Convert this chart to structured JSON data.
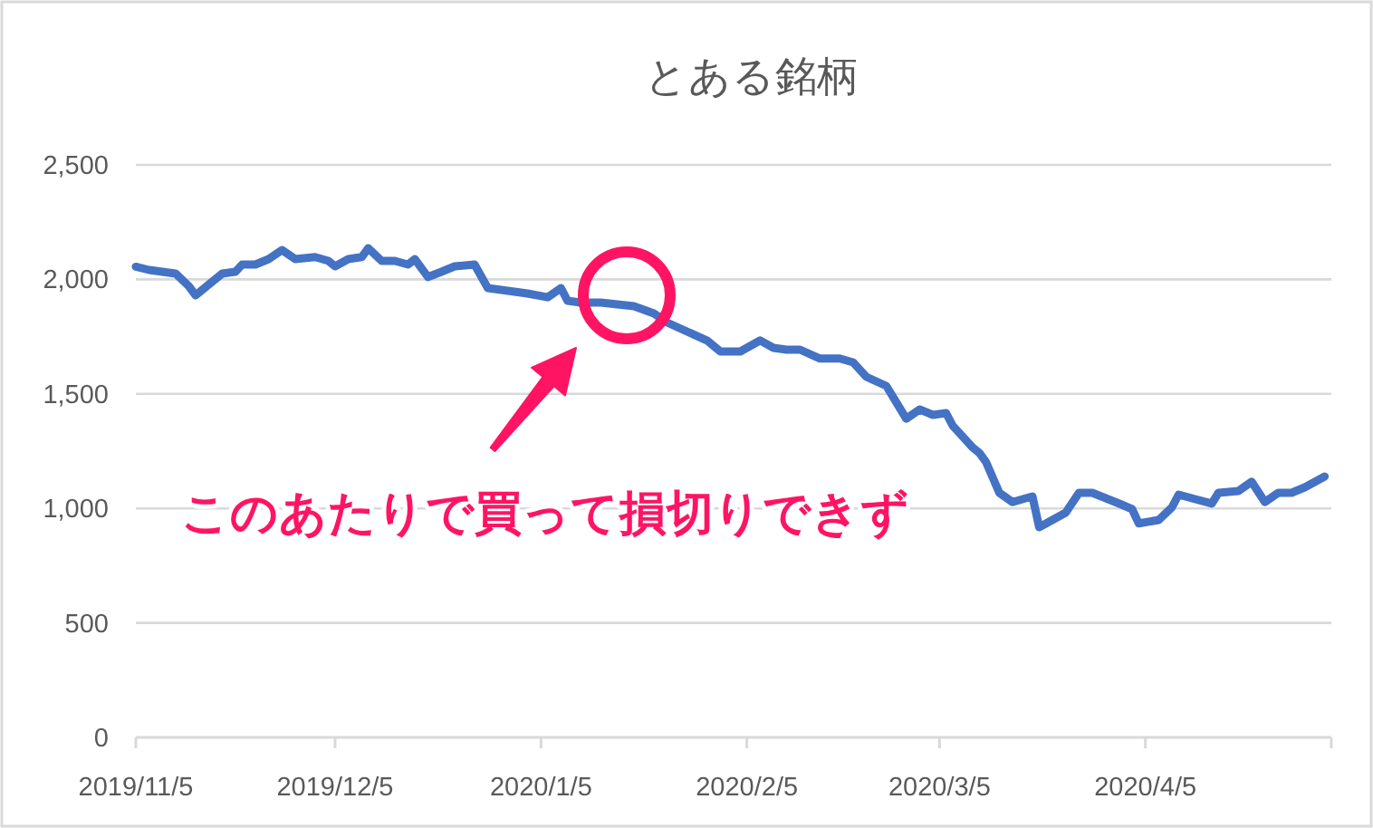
{
  "chart_data": {
    "type": "line",
    "title": "とある銘柄",
    "x": [
      "2019-11-05",
      "2019-11-07",
      "2019-11-11",
      "2019-11-13",
      "2019-11-14",
      "2019-11-16",
      "2019-11-18",
      "2019-11-20",
      "2019-11-21",
      "2019-11-23",
      "2019-11-25",
      "2019-11-27",
      "2019-11-29",
      "2019-12-02",
      "2019-12-04",
      "2019-12-05",
      "2019-12-07",
      "2019-12-09",
      "2019-12-10",
      "2019-12-12",
      "2019-12-14",
      "2019-12-16",
      "2019-12-17",
      "2019-12-19",
      "2019-12-21",
      "2019-12-23",
      "2019-12-26",
      "2019-12-28",
      "2019-12-30",
      "2020-01-03",
      "2020-01-06",
      "2020-01-08",
      "2020-01-09",
      "2020-01-11",
      "2020-01-14",
      "2020-01-19",
      "2020-01-22",
      "2020-01-24",
      "2020-01-27",
      "2020-01-30",
      "2020-02-01",
      "2020-02-04",
      "2020-02-07",
      "2020-02-09",
      "2020-02-11",
      "2020-02-13",
      "2020-02-16",
      "2020-02-19",
      "2020-02-21",
      "2020-02-23",
      "2020-02-26",
      "2020-02-29",
      "2020-03-02",
      "2020-03-04",
      "2020-03-06",
      "2020-03-07",
      "2020-03-10",
      "2020-03-11",
      "2020-03-12",
      "2020-03-14",
      "2020-03-16",
      "2020-03-18",
      "2020-03-19",
      "2020-03-20",
      "2020-03-24",
      "2020-03-26",
      "2020-03-28",
      "2020-04-01",
      "2020-04-03",
      "2020-04-04",
      "2020-04-07",
      "2020-04-09",
      "2020-04-10",
      "2020-04-12",
      "2020-04-15",
      "2020-04-16",
      "2020-04-19",
      "2020-04-21",
      "2020-04-23",
      "2020-04-25",
      "2020-04-27",
      "2020-04-29",
      "2020-05-02"
    ],
    "series": [
      {
        "color": "#4472c4",
        "values": [
          2055,
          2041,
          2025,
          1970,
          1930,
          1978,
          2025,
          2033,
          2065,
          2065,
          2089,
          2128,
          2089,
          2097,
          2081,
          2057,
          2089,
          2097,
          2136,
          2081,
          2081,
          2065,
          2089,
          2010,
          2033,
          2057,
          2065,
          1962,
          1954,
          1938,
          1922,
          1962,
          1907,
          1899,
          1899,
          1883,
          1851,
          1812,
          1772,
          1733,
          1685,
          1685,
          1733,
          1701,
          1693,
          1693,
          1654,
          1654,
          1638,
          1574,
          1535,
          1392,
          1432,
          1408,
          1416,
          1361,
          1266,
          1242,
          1203,
          1068,
          1028,
          1044,
          1052,
          918,
          981,
          1068,
          1068,
          1021,
          997,
          934,
          949,
          1005,
          1060,
          1044,
          1021,
          1068,
          1076,
          1116,
          1028,
          1068,
          1068,
          1092,
          1139
        ]
      }
    ],
    "xlim": [
      "2019-11-05",
      "2020-05-03"
    ],
    "xticks": [
      {
        "value": "2019-11-05",
        "label": "2019/11/5"
      },
      {
        "value": "2019-12-05",
        "label": "2019/12/5"
      },
      {
        "value": "2020-01-05",
        "label": "2020/1/5"
      },
      {
        "value": "2020-02-05",
        "label": "2020/2/5"
      },
      {
        "value": "2020-03-05",
        "label": "2020/3/5"
      },
      {
        "value": "2020-04-05",
        "label": "2020/4/5"
      }
    ],
    "ylim": [
      0,
      2500
    ],
    "yticks": [
      {
        "value": 0,
        "label": "0"
      },
      {
        "value": 500,
        "label": "500"
      },
      {
        "value": 1000,
        "label": "1,000"
      },
      {
        "value": 1500,
        "label": "1,500"
      },
      {
        "value": 2000,
        "label": "2,000"
      },
      {
        "value": 2500,
        "label": "2,500"
      }
    ],
    "grid": "y",
    "annotations": [
      "このあたりで買って損切りできず"
    ]
  }
}
